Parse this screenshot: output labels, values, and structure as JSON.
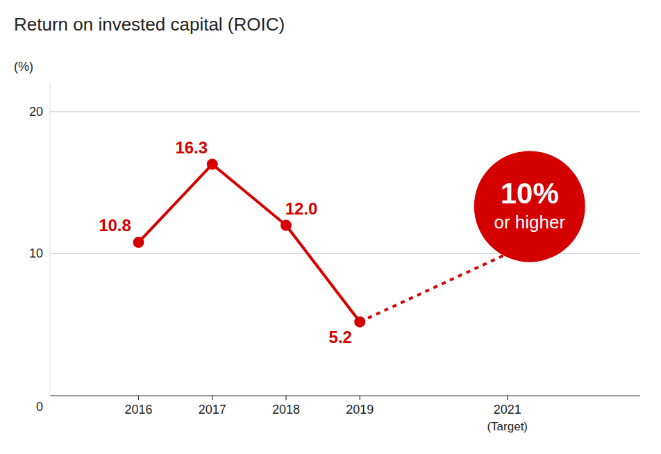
{
  "chart_data": {
    "type": "line",
    "title": "Return on invested capital (ROIC)",
    "y_label": "(%)",
    "x": [
      2016,
      2017,
      2018,
      2019,
      2021
    ],
    "series": [
      {
        "values": [
          10.8,
          16.3,
          12.0,
          5.2,
          null
        ],
        "value_labels": [
          "10.8",
          "16.3",
          "12.0",
          "5.2",
          null
        ],
        "data_labels": true,
        "color": "#d40000",
        "line_style": "solid",
        "marker": "circle"
      },
      {
        "values": [
          null,
          null,
          null,
          5.2,
          10.0
        ],
        "color": "#d40000",
        "line_style": "dotted"
      }
    ],
    "annotations": [
      {
        "text": "10%"
      },
      {
        "text": "or higher"
      },
      {
        "text": "(Target)"
      }
    ],
    "xlim": [
      2014.8,
      2022.8
    ],
    "xticks": [
      2016,
      2017,
      2018,
      2019,
      2021
    ],
    "ylim": [
      0,
      22
    ],
    "yticks": [
      0,
      10,
      20
    ],
    "grid": true
  }
}
